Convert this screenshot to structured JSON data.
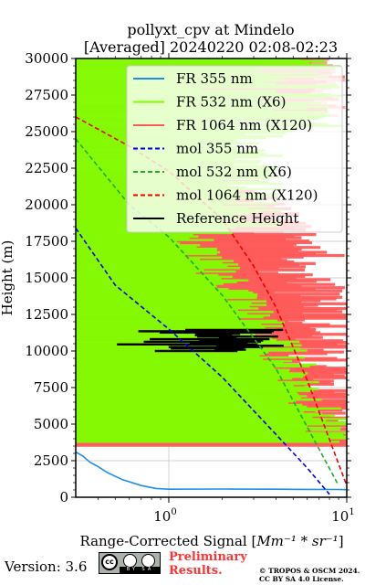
{
  "chart_data": {
    "type": "line",
    "title": "pollyxt_cpv at Mindelo",
    "subtitle": "[Averaged] 20240220 02:08-02:23",
    "xlabel": "Range-Corrected Signal [$Mm^{-1}*sr^{-1}$]",
    "ylabel": "Height (m)",
    "xscale": "log",
    "xlim": [
      0.3,
      10
    ],
    "ylim": [
      0,
      30000
    ],
    "yticks": [
      0,
      2500,
      5000,
      7500,
      10000,
      12500,
      15000,
      17500,
      20000,
      22500,
      25000,
      27500,
      30000
    ],
    "xticks": [
      {
        "value": 1,
        "label": "10^0"
      },
      {
        "value": 10,
        "label": "10^1"
      }
    ],
    "grid": true,
    "legend_position": "top-right",
    "colors": {
      "fr355": "#1f8fe6",
      "fr532": "#7fff00",
      "fr1064": "#ff5a5a",
      "mol355": "#0000ee",
      "mol532": "#22aa22",
      "mol1064": "#ee0000",
      "ref": "#000000"
    },
    "series": [
      {
        "name": "FR 355 nm",
        "style": "solid",
        "color": "#1f8fe6",
        "points": [
          [
            0.3,
            3100
          ],
          [
            0.33,
            2800
          ],
          [
            0.36,
            2400
          ],
          [
            0.4,
            2100
          ],
          [
            0.45,
            1700
          ],
          [
            0.55,
            1200
          ],
          [
            0.7,
            800
          ],
          [
            0.85,
            600
          ],
          [
            1.0,
            550
          ],
          [
            2.0,
            560
          ],
          [
            4.0,
            550
          ],
          [
            6.0,
            540
          ],
          [
            9.0,
            530
          ],
          [
            10,
            520
          ]
        ]
      },
      {
        "name": "FR 532 nm (X6)",
        "style": "solid",
        "color": "#7fff00",
        "points": []
      },
      {
        "name": "FR 1064 nm (X120)",
        "style": "solid",
        "color": "#ff5a5a",
        "points": []
      },
      {
        "name": "mol 355 nm",
        "style": "dashed",
        "color": "#0000ee",
        "points": [
          [
            0.3,
            18400
          ],
          [
            0.5,
            14500
          ],
          [
            1.0,
            11500
          ],
          [
            2.0,
            8200
          ],
          [
            4.0,
            4300
          ],
          [
            6.0,
            2000
          ],
          [
            8.0,
            200
          ]
        ]
      },
      {
        "name": "mol 532 nm (X6)",
        "style": "dashed",
        "color": "#22aa22",
        "points": [
          [
            0.3,
            24500
          ],
          [
            0.6,
            20000
          ],
          [
            1.0,
            17800
          ],
          [
            2.0,
            13800
          ],
          [
            4.0,
            8800
          ],
          [
            6.0,
            4800
          ],
          [
            9.0,
            800
          ]
        ]
      },
      {
        "name": "mol 1064 nm (X120)",
        "style": "dashed",
        "color": "#ee0000",
        "points": [
          [
            0.3,
            26000
          ],
          [
            0.6,
            24000
          ],
          [
            1.0,
            22300
          ],
          [
            2.0,
            19000
          ],
          [
            3.0,
            15800
          ],
          [
            4.0,
            13000
          ],
          [
            6.0,
            8000
          ],
          [
            10,
            800
          ]
        ]
      },
      {
        "name": "Reference Height",
        "style": "solid",
        "color": "#000000",
        "points": []
      }
    ],
    "reference_height": {
      "bottom": 10000,
      "top": 11500
    }
  },
  "footer": {
    "version": "Version: 3.6",
    "cc_label": "cc",
    "license_strip": "BY SA",
    "preliminary_line1": "Preliminary",
    "preliminary_line2": "Results.",
    "copyright_line1": "© TROPOS & OSCM 2024.",
    "copyright_line2": "CC BY SA 4.0 License."
  }
}
